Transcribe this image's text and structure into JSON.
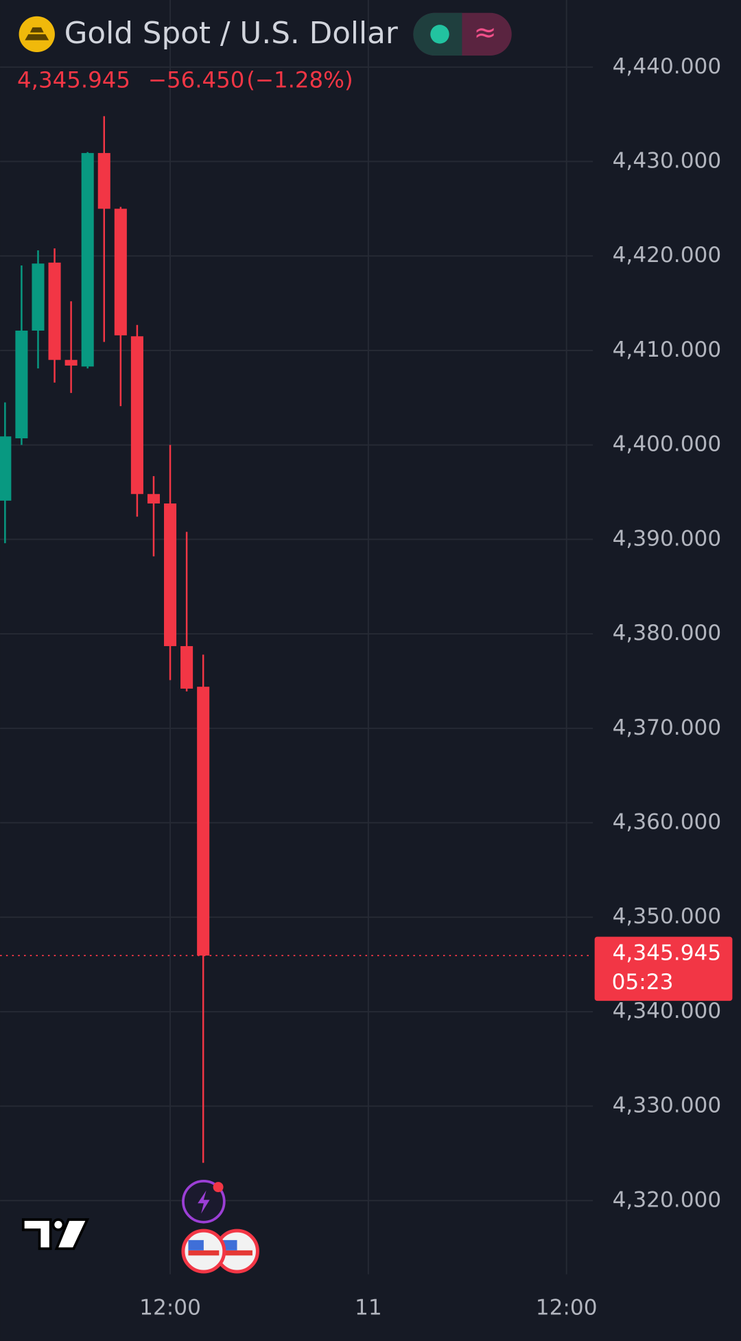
{
  "chart_data": {
    "type": "candlestick",
    "title": "Gold Spot / U.S. Dollar",
    "header_price": "4,345.945",
    "header_change": "−56.450",
    "header_change_pct": "(−1.28%)",
    "x": [
      0,
      1,
      2,
      3,
      4,
      5,
      6,
      7,
      8,
      9,
      10,
      11,
      12
    ],
    "open": [
      4394.1,
      4400.7,
      4412.1,
      4419.3,
      4409.0,
      4408.3,
      4430.9,
      4425.0,
      4411.5,
      4394.8,
      4393.8,
      4378.7,
      4374.4
    ],
    "high": [
      4404.5,
      4419.0,
      4420.6,
      4420.8,
      4415.2,
      4431.0,
      4434.8,
      4425.2,
      4412.7,
      4396.7,
      4400.0,
      4390.8,
      4377.8
    ],
    "low": [
      4389.6,
      4400.0,
      4408.1,
      4406.6,
      4405.5,
      4408.1,
      4410.9,
      4404.1,
      4392.4,
      4388.2,
      4375.1,
      4373.9,
      4324.0
    ],
    "close": [
      4400.9,
      4412.1,
      4419.2,
      4409.0,
      4408.4,
      4430.9,
      4425.0,
      4411.6,
      4394.8,
      4393.8,
      4378.7,
      4374.2,
      4345.945
    ],
    "up_color": "#089981",
    "down_color": "#f23645",
    "xlim": [
      -0.3,
      35.6
    ],
    "xticks": [
      {
        "value": 10,
        "label": "12:00"
      },
      {
        "value": 22,
        "label": "11"
      },
      {
        "value": 34,
        "label": "12:00"
      }
    ],
    "ylim": [
      4312.2,
      4447.1
    ],
    "yticks": [
      {
        "value": 4320,
        "label": "4,320.000"
      },
      {
        "value": 4330,
        "label": "4,330.000"
      },
      {
        "value": 4340,
        "label": "4,340.000"
      },
      {
        "value": 4350,
        "label": "4,350.000"
      },
      {
        "value": 4360,
        "label": "4,360.000"
      },
      {
        "value": 4370,
        "label": "4,370.000"
      },
      {
        "value": 4380,
        "label": "4,380.000"
      },
      {
        "value": 4390,
        "label": "4,390.000"
      },
      {
        "value": 4400,
        "label": "4,400.000"
      },
      {
        "value": 4410,
        "label": "4,410.000"
      },
      {
        "value": 4420,
        "label": "4,420.000"
      },
      {
        "value": 4430,
        "label": "4,430.000"
      },
      {
        "value": 4440,
        "label": "4,440.000"
      }
    ],
    "last_price": {
      "value": 4345.945,
      "label": "4,345.945"
    },
    "countdown": "05:23",
    "grid": true
  }
}
